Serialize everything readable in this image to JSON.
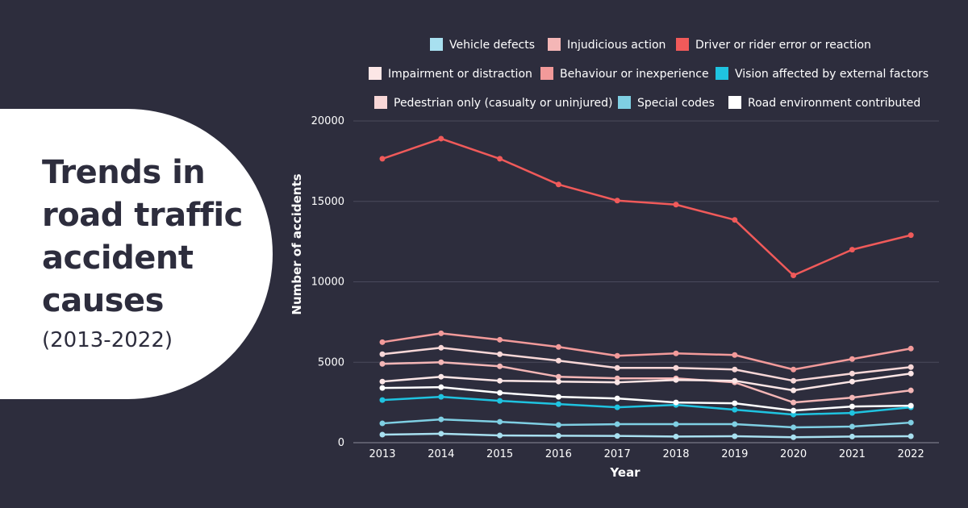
{
  "title": {
    "main": "Trends in road traffic accident causes",
    "sub": "(2013-2022)"
  },
  "chart_data": {
    "type": "line",
    "xlabel": "Year",
    "ylabel": "Number of accidents",
    "ylim": [
      0,
      20000
    ],
    "yticks": [
      0,
      5000,
      10000,
      15000,
      20000
    ],
    "grid": true,
    "legend_position": "top",
    "x": [
      "2013",
      "2014",
      "2015",
      "2016",
      "2017",
      "2018",
      "2019",
      "2020",
      "2021",
      "2022"
    ],
    "series": [
      {
        "name": "Vehicle defects",
        "color": "#a8e0f0",
        "values": [
          500,
          560,
          450,
          430,
          420,
          380,
          400,
          340,
          380,
          400
        ]
      },
      {
        "name": "Injudicious action",
        "color": "#f4b6b6",
        "values": [
          4900,
          5000,
          4750,
          4100,
          4000,
          4000,
          3750,
          2500,
          2800,
          3250
        ]
      },
      {
        "name": "Driver or rider error or reaction",
        "color": "#f05a5a",
        "values": [
          17650,
          18900,
          17650,
          16050,
          15050,
          14800,
          13850,
          10400,
          12000,
          12900
        ]
      },
      {
        "name": "Impairment or distraction",
        "color": "#fce6e6",
        "values": [
          3800,
          4100,
          3850,
          3800,
          3750,
          3900,
          3850,
          3250,
          3800,
          4300
        ]
      },
      {
        "name": "Behaviour or inexperience",
        "color": "#f29a9a",
        "values": [
          6250,
          6800,
          6400,
          5950,
          5400,
          5550,
          5450,
          4550,
          5200,
          5850
        ]
      },
      {
        "name": "Vision affected by external factors",
        "color": "#1fc3e0",
        "values": [
          2650,
          2850,
          2600,
          2400,
          2200,
          2350,
          2050,
          1750,
          1850,
          2200
        ]
      },
      {
        "name": "Pedestrian only (casualty or uninjured)",
        "color": "#f8d7d7",
        "values": [
          5500,
          5900,
          5500,
          5100,
          4650,
          4650,
          4550,
          3850,
          4300,
          4700
        ]
      },
      {
        "name": "Special codes",
        "color": "#7fcfe3",
        "values": [
          1200,
          1450,
          1300,
          1100,
          1150,
          1150,
          1150,
          950,
          1000,
          1250
        ]
      },
      {
        "name": "Road environment contributed",
        "color": "#ffffff",
        "values": [
          3400,
          3450,
          3100,
          2850,
          2750,
          2500,
          2450,
          2000,
          2250,
          2300
        ]
      }
    ]
  }
}
